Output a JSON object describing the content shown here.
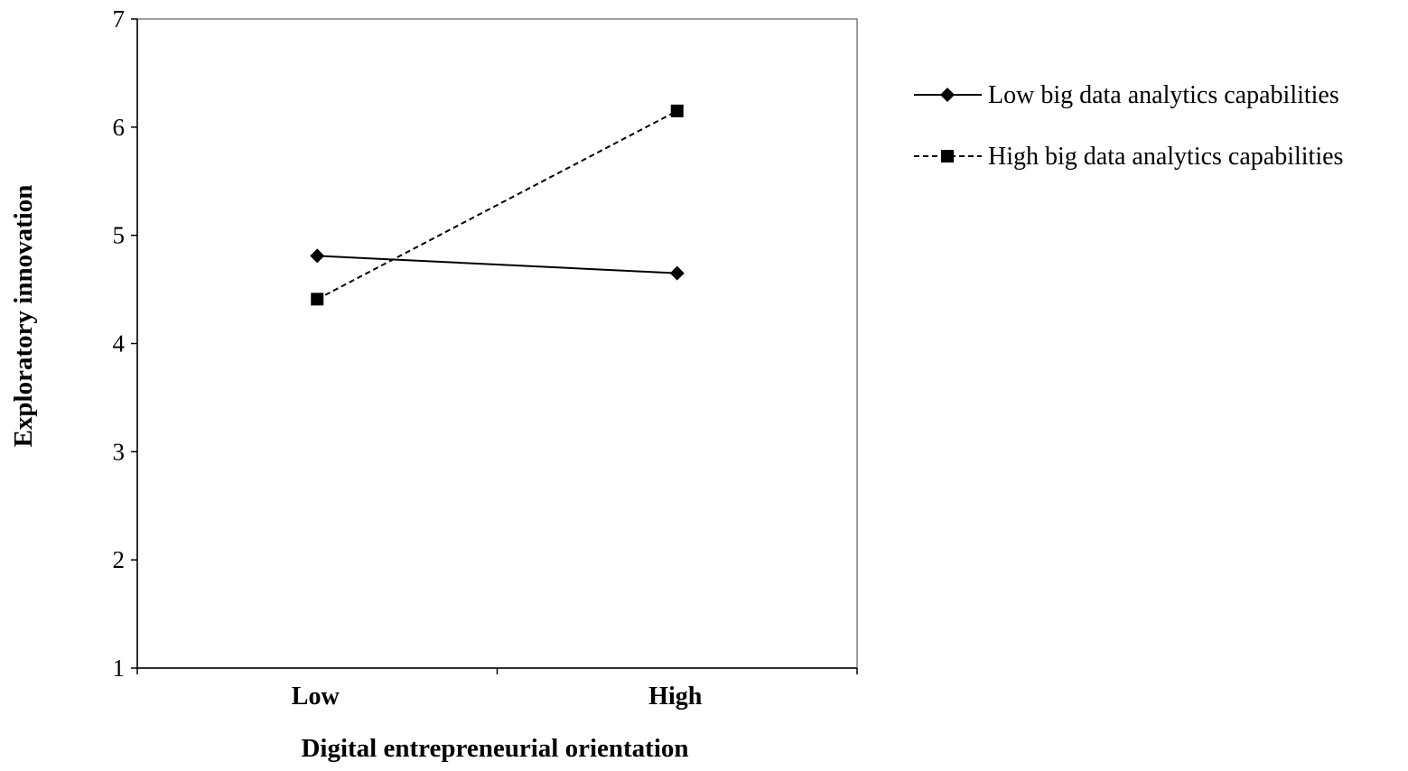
{
  "chart_data": {
    "type": "line",
    "categories": [
      "Low",
      "High"
    ],
    "series": [
      {
        "name": "Low big data analytics capabilities",
        "values": [
          4.81,
          4.65
        ],
        "line_style": "solid",
        "marker": "diamond",
        "color": "#000000"
      },
      {
        "name": "High big data analytics capabilities",
        "values": [
          4.41,
          6.15
        ],
        "line_style": "dashed",
        "marker": "square",
        "color": "#000000"
      }
    ],
    "xlabel": "Digital entrepreneurial orientation",
    "ylabel": "Exploratory innovation",
    "ylim": [
      1,
      7
    ],
    "yticks": [
      1,
      2,
      3,
      4,
      5,
      6,
      7
    ],
    "grid": false,
    "legend_position": "right"
  }
}
